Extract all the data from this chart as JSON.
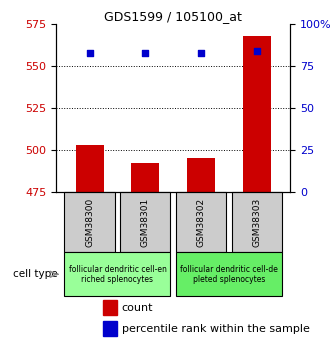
{
  "title": "GDS1599 / 105100_at",
  "samples": [
    "GSM38300",
    "GSM38301",
    "GSM38302",
    "GSM38303"
  ],
  "count_values": [
    503,
    492,
    495,
    568
  ],
  "percentile_values": [
    83,
    83,
    83,
    84
  ],
  "ylim_left": [
    475,
    575
  ],
  "yticks_left": [
    475,
    500,
    525,
    550,
    575
  ],
  "ylim_right": [
    0,
    100
  ],
  "yticks_right": [
    0,
    25,
    50,
    75,
    100
  ],
  "bar_color": "#cc0000",
  "dot_color": "#0000cc",
  "bar_width": 0.5,
  "cell_type_groups": [
    {
      "label": "follicular dendritic cell-en\nriched splenocytes",
      "samples": [
        0,
        1
      ],
      "color": "#99ff99"
    },
    {
      "label": "follicular dendritic cell-de\npleted splenocytes",
      "samples": [
        2,
        3
      ],
      "color": "#66ee66"
    }
  ],
  "legend_count_label": "count",
  "legend_pct_label": "percentile rank within the sample",
  "cell_type_label": "cell type",
  "grid_yticks": [
    500,
    525,
    550
  ],
  "tick_label_color_left": "#cc0000",
  "tick_label_color_right": "#0000cc",
  "sample_box_color": "#cccccc",
  "spine_color": "#000000",
  "title_fontsize": 9,
  "axis_fontsize": 8,
  "legend_fontsize": 8
}
